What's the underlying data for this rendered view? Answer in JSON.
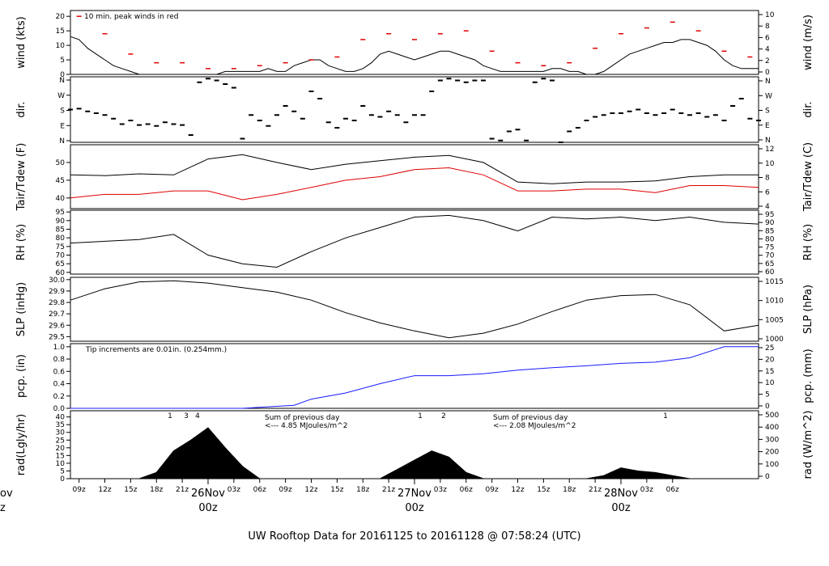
{
  "page_title": "UW Rooftop Data for 20161125  to  20161128 @ 07:58:24  (UTC)",
  "colors": {
    "black": "#000000",
    "red": "#e00000",
    "blue": "#1a1aff",
    "purple": "#9a20c8",
    "title_blue": "#1010cc",
    "date_red": "#dd0000"
  },
  "time_axis": {
    "hour_ticks": [
      "09z",
      "12z",
      "15z",
      "18z",
      "21z",
      "03z",
      "06z",
      "09z",
      "12z",
      "15z",
      "18z",
      "21z",
      "03z",
      "06z",
      "09z",
      "12z",
      "15z",
      "18z",
      "21z",
      "03z",
      "06z"
    ],
    "day_labels": [
      {
        "date": "26Nov",
        "hour": "00z"
      },
      {
        "date": "27Nov",
        "hour": "00z"
      },
      {
        "date": "28Nov",
        "hour": "00z"
      }
    ],
    "clipped_left": {
      "date": "ov",
      "hour": "z"
    }
  },
  "chart_data": [
    {
      "type": "line",
      "id": "wind",
      "ylabel": "wind (kts)",
      "ylabel_right": "wind (m/s)",
      "left_ticks": [
        0,
        5,
        10,
        15,
        20
      ],
      "right_ticks": [
        0,
        2,
        4,
        6,
        8,
        10
      ],
      "ylim": [
        0,
        22
      ],
      "annotation": "10 min. peak winds in red",
      "series": [
        {
          "name": "wind",
          "color": "#000000",
          "x": [
            8,
            9,
            10,
            11,
            12,
            13,
            14,
            15,
            16,
            17,
            18,
            19,
            20,
            21,
            22,
            23,
            24,
            25,
            26,
            27,
            28,
            29,
            30,
            31,
            32,
            33,
            34,
            35,
            36,
            37,
            38,
            39,
            40,
            41,
            42,
            43,
            44,
            45,
            46,
            47,
            48,
            49,
            50,
            51,
            52,
            53,
            54,
            55,
            56,
            57,
            58,
            59,
            60,
            61,
            62,
            63,
            64,
            65,
            66,
            67,
            68,
            69,
            70,
            71,
            72,
            73,
            74,
            75,
            76,
            77,
            78,
            79,
            80,
            81,
            82,
            83,
            84,
            85,
            86,
            87,
            88
          ],
          "y": [
            13,
            12,
            9,
            7,
            5,
            3,
            2,
            1,
            0,
            0,
            0,
            0,
            0,
            0,
            0,
            0,
            0,
            0,
            1,
            1,
            1,
            1,
            1,
            2,
            1,
            1,
            3,
            4,
            5,
            5,
            3,
            2,
            1,
            1,
            2,
            4,
            7,
            8,
            7,
            6,
            5,
            6,
            7,
            8,
            8,
            7,
            6,
            5,
            3,
            2,
            1,
            1,
            1,
            1,
            1,
            1,
            2,
            2,
            1,
            1,
            0,
            0,
            1,
            3,
            5,
            7,
            8,
            9,
            10,
            11,
            11,
            12,
            12,
            11,
            10,
            8,
            5,
            3,
            2,
            2,
            2
          ]
        },
        {
          "name": "peak",
          "color": "#e00000",
          "x": [
            9,
            12,
            15,
            18,
            21,
            24,
            27,
            30,
            33,
            36,
            39,
            42,
            45,
            48,
            51,
            54,
            57,
            60,
            63,
            66,
            69,
            72,
            75,
            78,
            81,
            84,
            87
          ],
          "y": [
            20,
            14,
            7,
            4,
            4,
            2,
            2,
            3,
            4,
            5,
            6,
            12,
            14,
            12,
            14,
            15,
            8,
            4,
            3,
            4,
            9,
            14,
            16,
            18,
            15,
            8,
            6
          ]
        }
      ]
    },
    {
      "type": "scatter",
      "id": "direction",
      "ylabel": "dir.",
      "ylabel_right": "dir.",
      "left_ticks": [
        "N",
        "E",
        "S",
        "W",
        "N"
      ],
      "right_ticks": [
        "N",
        "E",
        "S",
        "W",
        "N"
      ],
      "ylim": [
        0,
        360
      ],
      "series": [
        {
          "name": "dir",
          "color": "#000000",
          "x": [
            8,
            9,
            10,
            11,
            12,
            13,
            14,
            15,
            16,
            17,
            18,
            19,
            20,
            21,
            22,
            23,
            24,
            25,
            26,
            27,
            28,
            29,
            30,
            31,
            32,
            33,
            34,
            35,
            36,
            37,
            38,
            39,
            40,
            41,
            42,
            43,
            44,
            45,
            46,
            47,
            48,
            49,
            50,
            51,
            52,
            53,
            54,
            55,
            56,
            57,
            58,
            59,
            60,
            61,
            62,
            63,
            64,
            65,
            66,
            67,
            68,
            69,
            70,
            71,
            72,
            73,
            74,
            75,
            76,
            77,
            78,
            79,
            80,
            81,
            82,
            83,
            84,
            85,
            86,
            87,
            88
          ],
          "y": [
            180,
            185,
            170,
            160,
            150,
            130,
            100,
            120,
            95,
            100,
            90,
            110,
            100,
            95,
            40,
            330,
            350,
            340,
            320,
            300,
            20,
            150,
            120,
            90,
            150,
            200,
            170,
            130,
            280,
            240,
            110,
            80,
            130,
            120,
            200,
            150,
            140,
            170,
            150,
            110,
            150,
            150,
            280,
            340,
            350,
            340,
            330,
            340,
            340,
            20,
            10,
            60,
            70,
            10,
            330,
            350,
            340,
            0,
            60,
            80,
            120,
            140,
            150,
            160,
            160,
            170,
            180,
            160,
            150,
            160,
            180,
            160,
            150,
            160,
            140,
            150,
            120,
            200,
            240,
            130,
            120
          ]
        }
      ]
    },
    {
      "type": "line",
      "id": "temperature",
      "ylabel": "Tair/Tdew (F)",
      "ylabel_right": "Tair/Tdew (C)",
      "left_ticks": [
        40,
        45,
        50
      ],
      "right_ticks": [
        4,
        6,
        8,
        10,
        12
      ],
      "ylim": [
        37,
        55
      ],
      "series": [
        {
          "name": "Tair",
          "color": "#000000",
          "x": [
            8,
            12,
            16,
            20,
            24,
            28,
            32,
            36,
            40,
            44,
            48,
            52,
            56,
            60,
            64,
            68,
            72,
            76,
            80,
            84,
            88
          ],
          "y": [
            46.5,
            46.3,
            46.8,
            46.5,
            51.0,
            52.2,
            50.0,
            48.0,
            49.5,
            50.5,
            51.5,
            52,
            50,
            44.5,
            44,
            44.5,
            44.5,
            44.8,
            46.0,
            46.5,
            46.5
          ]
        },
        {
          "name": "Tdew",
          "color": "#e00000",
          "x": [
            8,
            12,
            16,
            20,
            24,
            28,
            32,
            36,
            40,
            44,
            48,
            52,
            56,
            60,
            64,
            68,
            72,
            76,
            80,
            84,
            88
          ],
          "y": [
            40,
            41,
            41,
            42,
            42,
            39.5,
            41,
            43,
            45,
            46,
            48,
            48.5,
            46.5,
            42,
            42,
            42.5,
            42.5,
            41.5,
            43.5,
            43.5,
            43
          ]
        }
      ]
    },
    {
      "type": "line",
      "id": "rh",
      "ylabel": "RH (%)",
      "ylabel_right": "RH (%)",
      "left_ticks": [
        60,
        65,
        70,
        75,
        80,
        85,
        90,
        95
      ],
      "right_ticks": [
        60,
        65,
        70,
        75,
        80,
        85,
        90,
        95
      ],
      "ylim": [
        59,
        96
      ],
      "series": [
        {
          "name": "RH",
          "color": "#000000",
          "x": [
            8,
            12,
            16,
            20,
            24,
            28,
            32,
            36,
            40,
            44,
            48,
            52,
            56,
            60,
            64,
            68,
            72,
            76,
            80,
            84,
            88
          ],
          "y": [
            77,
            78,
            79,
            82,
            70,
            65,
            63,
            72,
            80,
            86,
            92,
            93,
            90,
            84,
            92,
            91,
            92,
            90,
            92,
            89,
            88
          ]
        }
      ]
    },
    {
      "type": "line",
      "id": "pressure",
      "ylabel": "SLP (inHg)",
      "ylabel_right": "SLP (hPa)",
      "left_ticks": [
        29.5,
        29.6,
        29.7,
        29.8,
        29.9,
        30.0
      ],
      "right_ticks": [
        1000,
        1005,
        1010,
        1015
      ],
      "ylim": [
        29.46,
        30.02
      ],
      "series": [
        {
          "name": "SLP",
          "color": "#000000",
          "x": [
            8,
            12,
            16,
            20,
            24,
            28,
            32,
            36,
            40,
            44,
            48,
            52,
            56,
            60,
            64,
            68,
            72,
            76,
            80,
            84,
            88
          ],
          "y": [
            29.82,
            29.92,
            29.98,
            29.99,
            29.97,
            29.93,
            29.89,
            29.82,
            29.71,
            29.62,
            29.55,
            29.49,
            29.53,
            29.61,
            29.72,
            29.82,
            29.86,
            29.87,
            29.78,
            29.55,
            29.6
          ]
        }
      ]
    },
    {
      "type": "line",
      "id": "precipitation",
      "ylabel": "pcp. (in)",
      "ylabel_right": "pcp. (mm)",
      "left_ticks": [
        0,
        0.2,
        0.4,
        0.6,
        0.8,
        1.0
      ],
      "right_ticks": [
        0,
        5,
        10,
        15,
        20,
        25
      ],
      "ylim": [
        0,
        1.05
      ],
      "annotation": "Tip increments are 0.01in. (0.254mm.)",
      "series": [
        {
          "name": "pcp",
          "color": "#1a1aff",
          "x": [
            8,
            20,
            28,
            34,
            36,
            40,
            44,
            48,
            52,
            56,
            60,
            64,
            68,
            72,
            76,
            80,
            84,
            88
          ],
          "y": [
            0,
            0,
            0,
            0.05,
            0.15,
            0.25,
            0.4,
            0.53,
            0.53,
            0.56,
            0.62,
            0.66,
            0.69,
            0.73,
            0.75,
            0.82,
            1.0,
            1.0
          ]
        }
      ]
    },
    {
      "type": "area",
      "id": "radiation",
      "ylabel": "rad(Lgly/hr)",
      "ylabel_right": "rad (W/m^2)",
      "left_ticks": [
        0,
        5,
        10,
        15,
        20,
        25,
        30,
        35,
        40
      ],
      "right_ticks": [
        0,
        100,
        200,
        300,
        400,
        500
      ],
      "ylim": [
        0,
        44
      ],
      "annotations": [
        "Sum of previous day",
        "<--- 4.85 MJoules/m^2",
        "Sum of previous day",
        "<--- 2.08 MJoules/m^2"
      ],
      "tip_marks": [
        "1",
        "3",
        "4",
        "1",
        "2",
        "1"
      ],
      "series": [
        {
          "name": "rad",
          "color": "#000000",
          "x": [
            8,
            12,
            16,
            18,
            20,
            22,
            24,
            26,
            28,
            30,
            32,
            34,
            36,
            40,
            44,
            46,
            48,
            50,
            52,
            54,
            56,
            58,
            64,
            68,
            70,
            72,
            74,
            76,
            78,
            80,
            84,
            88
          ],
          "y": [
            0,
            0,
            0,
            4,
            18,
            25,
            33,
            20,
            8,
            0,
            0,
            0,
            0,
            0,
            0,
            6,
            12,
            18,
            14,
            4,
            0,
            0,
            0,
            0,
            2,
            7,
            5,
            4,
            2,
            0,
            0,
            0
          ]
        }
      ]
    }
  ]
}
